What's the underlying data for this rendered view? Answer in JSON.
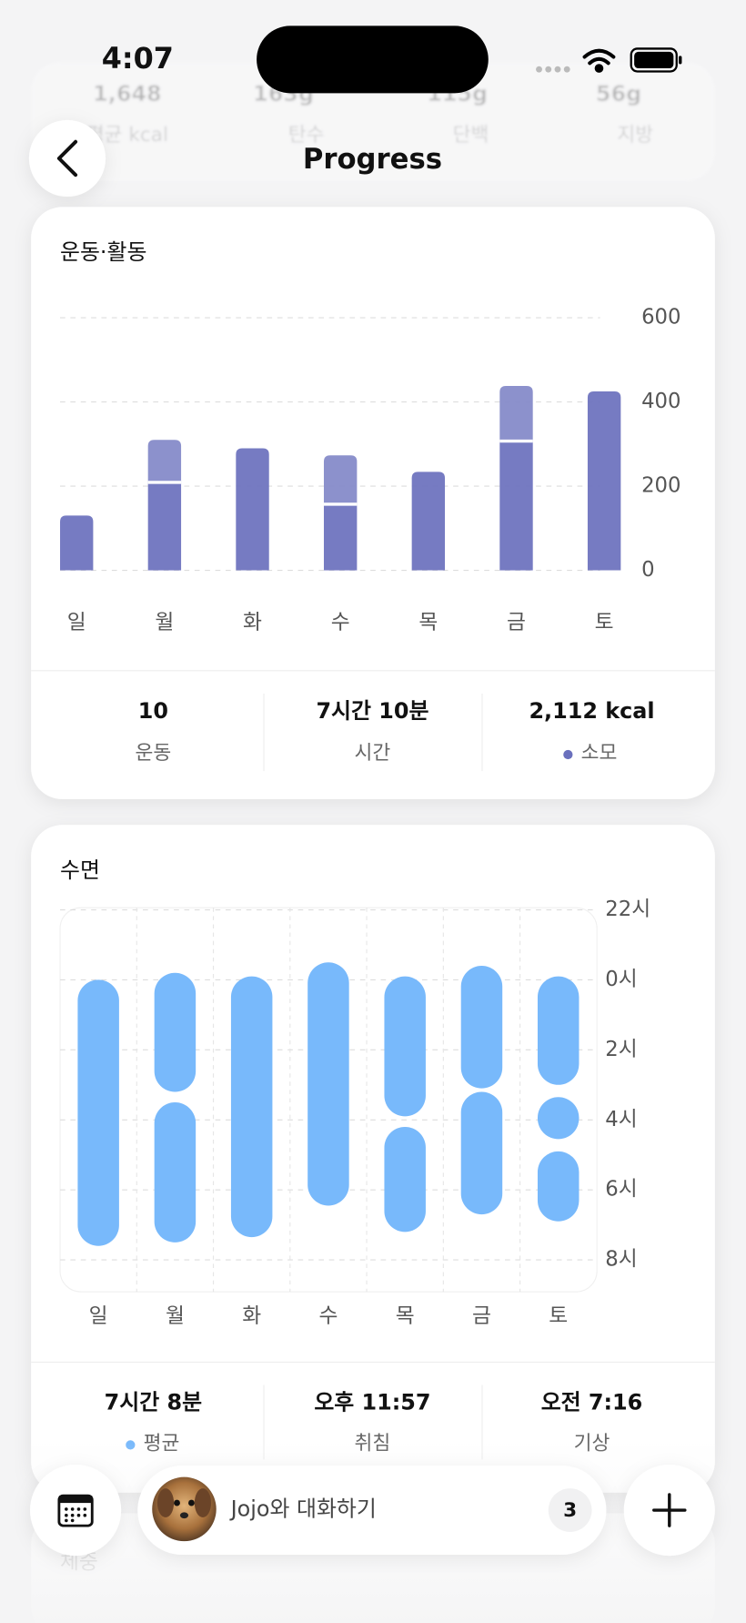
{
  "status_bar": {
    "time": "4:07"
  },
  "header": {
    "title": "Progress"
  },
  "nutrition_summary": {
    "items": [
      {
        "value": "1,648",
        "label": "평균 kcal"
      },
      {
        "value": "163g",
        "label": "탄수"
      },
      {
        "value": "115g",
        "label": "단백"
      },
      {
        "value": "56g",
        "label": "지방"
      }
    ]
  },
  "chart_data": [
    {
      "type": "bar",
      "stacked": true,
      "title": "운동·활동",
      "categories": [
        "일",
        "월",
        "화",
        "수",
        "목",
        "금",
        "토"
      ],
      "series": [
        {
          "color": "#6a70bd",
          "values": [
            130,
            209,
            290,
            157,
            234,
            307,
            425
          ]
        },
        {
          "color": "#8288c8",
          "values": [
            null,
            101,
            null,
            116,
            null,
            131,
            null
          ]
        }
      ],
      "ylim": [
        0,
        600
      ],
      "yticks": [
        0,
        200,
        400,
        600
      ],
      "grid": true,
      "summary": [
        {
          "value": "10",
          "label": "운동"
        },
        {
          "value": "7시간 10분",
          "label": "시간"
        },
        {
          "value": "2,112 kcal",
          "label": "소모"
        }
      ]
    },
    {
      "type": "range",
      "title": "수면",
      "categories": [
        "일",
        "월",
        "화",
        "수",
        "목",
        "금",
        "토"
      ],
      "color": "#78b9fb",
      "ranges": [
        [
          [
            0,
            7.6
          ]
        ],
        [
          [
            -0.2,
            3.2
          ],
          [
            3.5,
            7.5
          ]
        ],
        [
          [
            -0.1,
            7.35
          ]
        ],
        [
          [
            -0.5,
            6.45
          ]
        ],
        [
          [
            -0.1,
            3.9
          ],
          [
            4.2,
            7.2
          ]
        ],
        [
          [
            -0.4,
            3.1
          ],
          [
            3.2,
            6.7
          ]
        ],
        [
          [
            -0.1,
            3.0
          ],
          [
            3.35,
            4.55
          ],
          [
            4.9,
            6.9
          ]
        ]
      ],
      "ylim": [
        -2,
        9
      ],
      "y_reversed": true,
      "yticks": [
        {
          "value": -2,
          "label": "22시"
        },
        {
          "value": 0,
          "label": "0시"
        },
        {
          "value": 2,
          "label": "2시"
        },
        {
          "value": 4,
          "label": "4시"
        },
        {
          "value": 6,
          "label": "6시"
        },
        {
          "value": 8,
          "label": "8시"
        }
      ],
      "grid": true,
      "summary": [
        {
          "value": "7시간 8분",
          "label": "평균"
        },
        {
          "value": "오후 11:57",
          "label": "취침"
        },
        {
          "value": "오전 7:16",
          "label": "기상"
        }
      ]
    }
  ],
  "next_section": {
    "title": "체중"
  },
  "chat_bar": {
    "placeholder": "Jojo와 대화하기",
    "badge": "3"
  }
}
